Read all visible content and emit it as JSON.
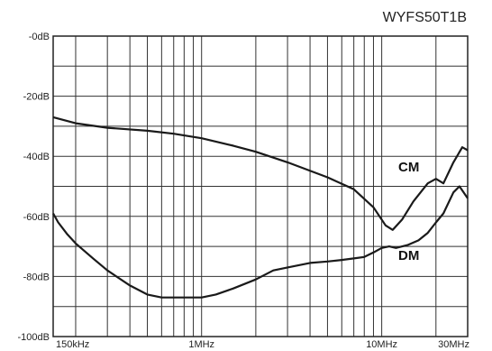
{
  "chart_data": {
    "type": "line",
    "title": "WYFS50T1B",
    "xlabel": "",
    "ylabel": "",
    "x_scale": "log",
    "xlim": [
      150000,
      30000000
    ],
    "ylim": [
      -100,
      0
    ],
    "grid": true,
    "y_ticks": [
      {
        "value": 0,
        "label": "-0dB"
      },
      {
        "value": -20,
        "label": "-20dB"
      },
      {
        "value": -40,
        "label": "-40dB"
      },
      {
        "value": -60,
        "label": "-60dB"
      },
      {
        "value": -80,
        "label": "-80dB"
      },
      {
        "value": -100,
        "label": "-100dB"
      }
    ],
    "x_ticks": [
      {
        "value": 150000,
        "label": "150kHz"
      },
      {
        "value": 1000000,
        "label": "1MHz"
      },
      {
        "value": 10000000,
        "label": "10MHz"
      },
      {
        "value": 30000000,
        "label": "30MHz"
      }
    ],
    "series": [
      {
        "name": "CM",
        "x": [
          150000,
          200000,
          300000,
          500000,
          700000,
          1000000,
          1500000,
          2000000,
          3000000,
          5000000,
          7000000,
          9000000,
          10500000,
          11500000,
          13000000,
          15000000,
          18000000,
          20000000,
          22000000,
          25000000,
          28000000,
          30000000
        ],
        "y": [
          -27,
          -29,
          -30.5,
          -31.5,
          -32.5,
          -34,
          -36.5,
          -38.5,
          -42,
          -47,
          -51,
          -57,
          -63,
          -64.5,
          -61,
          -55,
          -49,
          -47.5,
          -49,
          -42,
          -37,
          -38
        ]
      },
      {
        "name": "DM",
        "x": [
          150000,
          160000,
          180000,
          200000,
          250000,
          300000,
          400000,
          500000,
          600000,
          700000,
          800000,
          900000,
          1000000,
          1200000,
          1500000,
          2000000,
          2500000,
          3000000,
          4000000,
          5000000,
          6000000,
          7000000,
          8000000,
          9000000,
          10000000,
          11000000,
          12000000,
          14000000,
          16000000,
          18000000,
          20000000,
          22000000,
          25000000,
          27000000,
          30000000
        ],
        "y": [
          -59,
          -62,
          -66,
          -69,
          -74,
          -78,
          -83,
          -86,
          -87,
          -87,
          -87,
          -87,
          -87,
          -86,
          -84,
          -81,
          -78,
          -77,
          -75.5,
          -75,
          -74.5,
          -74,
          -73.5,
          -72,
          -70.5,
          -70,
          -70.5,
          -69.5,
          -68,
          -65.5,
          -62,
          -59,
          -52,
          -50,
          -54
        ]
      }
    ]
  }
}
